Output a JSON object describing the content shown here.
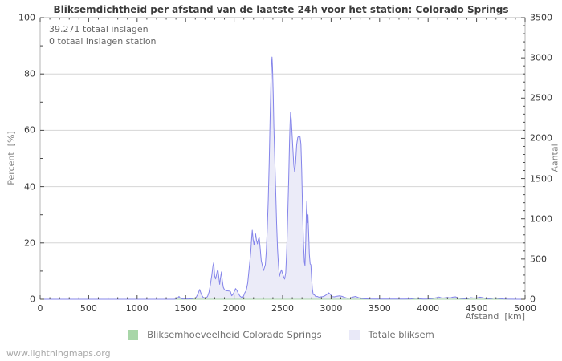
{
  "title": "Bliksemdichtheid per afstand van de laatste 24h voor het station: Colorado Springs",
  "annotations": {
    "total_strikes": "39.271 totaal inslagen",
    "station_strikes": "0 totaal inslagen station"
  },
  "watermark": "www.lightningmaps.org",
  "legend": [
    {
      "label": "Bliksemhoeveelheid Colorado Springs",
      "color": "#a8d6a8"
    },
    {
      "label": "Totale bliksem",
      "color": "#e9e9f8"
    }
  ],
  "colors": {
    "frame": "#b4b4b4",
    "grid": "#d6d6d6",
    "tick": "#4a4a4a",
    "total_line": "#8484ea",
    "total_fill": "#ebebf8",
    "station_line": "#a8d6a8"
  },
  "chart_data": {
    "type": "area",
    "title": "Bliksemdichtheid per afstand van de laatste 24h voor het station: Colorado Springs",
    "xlabel": "Afstand  [km]",
    "ylabel_left": "Percent  [%]",
    "ylabel_right": "Aantal",
    "x_axis": {
      "min": 0,
      "max": 5000,
      "major_step": 500,
      "minor_step": 100
    },
    "y_left": {
      "min": 0,
      "max": 100,
      "major_step": 20,
      "minor_step": 10
    },
    "y_right": {
      "min": 0,
      "max": 3500,
      "major_step": 500,
      "minor_step": 100
    },
    "grid": "horizontal-major-only",
    "legend_position": "bottom-center",
    "series": [
      {
        "name": "Bliksemhoeveelheid Colorado Springs",
        "axis": "left",
        "style": "line",
        "color": "#a8d6a8",
        "points": [
          [
            0,
            0
          ],
          [
            5000,
            0
          ]
        ]
      },
      {
        "name": "Totale bliksem",
        "axis": "right",
        "style": "area",
        "line_color": "#8484ea",
        "fill_color": "#ebebf8",
        "points": [
          [
            0,
            0
          ],
          [
            1200,
            0
          ],
          [
            1380,
            0
          ],
          [
            1405,
            4
          ],
          [
            1420,
            18
          ],
          [
            1432,
            35
          ],
          [
            1445,
            14
          ],
          [
            1470,
            4
          ],
          [
            1530,
            4
          ],
          [
            1570,
            7
          ],
          [
            1605,
            18
          ],
          [
            1625,
            60
          ],
          [
            1645,
            122
          ],
          [
            1662,
            60
          ],
          [
            1680,
            25
          ],
          [
            1700,
            14
          ],
          [
            1715,
            18
          ],
          [
            1728,
            40
          ],
          [
            1742,
            90
          ],
          [
            1755,
            180
          ],
          [
            1770,
            300
          ],
          [
            1782,
            420
          ],
          [
            1790,
            455
          ],
          [
            1800,
            290
          ],
          [
            1809,
            252
          ],
          [
            1818,
            300
          ],
          [
            1826,
            350
          ],
          [
            1833,
            368
          ],
          [
            1842,
            280
          ],
          [
            1851,
            185
          ],
          [
            1860,
            270
          ],
          [
            1869,
            340
          ],
          [
            1878,
            230
          ],
          [
            1888,
            150
          ],
          [
            1900,
            120
          ],
          [
            1915,
            108
          ],
          [
            1932,
            105
          ],
          [
            1948,
            103
          ],
          [
            1962,
            96
          ],
          [
            1974,
            44
          ],
          [
            1988,
            60
          ],
          [
            2002,
            95
          ],
          [
            2015,
            133
          ],
          [
            2030,
            108
          ],
          [
            2045,
            70
          ],
          [
            2060,
            40
          ],
          [
            2072,
            28
          ],
          [
            2086,
            20
          ],
          [
            2098,
            40
          ],
          [
            2110,
            80
          ],
          [
            2125,
            110
          ],
          [
            2140,
            200
          ],
          [
            2152,
            348
          ],
          [
            2163,
            480
          ],
          [
            2172,
            600
          ],
          [
            2180,
            740
          ],
          [
            2187,
            858
          ],
          [
            2196,
            740
          ],
          [
            2205,
            672
          ],
          [
            2214,
            750
          ],
          [
            2222,
            812
          ],
          [
            2231,
            730
          ],
          [
            2240,
            688
          ],
          [
            2250,
            745
          ],
          [
            2258,
            770
          ],
          [
            2268,
            640
          ],
          [
            2280,
            480
          ],
          [
            2292,
            415
          ],
          [
            2302,
            355
          ],
          [
            2312,
            392
          ],
          [
            2322,
            430
          ],
          [
            2332,
            600
          ],
          [
            2342,
            880
          ],
          [
            2352,
            1230
          ],
          [
            2362,
            1700
          ],
          [
            2372,
            2280
          ],
          [
            2380,
            2720
          ],
          [
            2386,
            2920
          ],
          [
            2391,
            3010
          ],
          [
            2396,
            2890
          ],
          [
            2403,
            2550
          ],
          [
            2410,
            2150
          ],
          [
            2418,
            1800
          ],
          [
            2428,
            1380
          ],
          [
            2438,
            950
          ],
          [
            2448,
            620
          ],
          [
            2458,
            420
          ],
          [
            2468,
            285
          ],
          [
            2477,
            330
          ],
          [
            2488,
            366
          ],
          [
            2499,
            320
          ],
          [
            2510,
            282
          ],
          [
            2521,
            250
          ],
          [
            2532,
            330
          ],
          [
            2543,
            620
          ],
          [
            2553,
            1050
          ],
          [
            2563,
            1500
          ],
          [
            2571,
            1950
          ],
          [
            2577,
            2180
          ],
          [
            2582,
            2320
          ],
          [
            2589,
            2240
          ],
          [
            2598,
            2050
          ],
          [
            2607,
            1850
          ],
          [
            2615,
            1670
          ],
          [
            2624,
            1580
          ],
          [
            2634,
            1700
          ],
          [
            2645,
            1920
          ],
          [
            2656,
            2010
          ],
          [
            2668,
            2030
          ],
          [
            2680,
            2020
          ],
          [
            2689,
            1930
          ],
          [
            2697,
            1600
          ],
          [
            2706,
            1100
          ],
          [
            2715,
            700
          ],
          [
            2724,
            460
          ],
          [
            2731,
            420
          ],
          [
            2738,
            700
          ],
          [
            2745,
            1080
          ],
          [
            2750,
            1225
          ],
          [
            2756,
            950
          ],
          [
            2762,
            1050
          ],
          [
            2769,
            800
          ],
          [
            2776,
            560
          ],
          [
            2784,
            440
          ],
          [
            2791,
            430
          ],
          [
            2798,
            280
          ],
          [
            2806,
            130
          ],
          [
            2815,
            60
          ],
          [
            2828,
            55
          ],
          [
            2842,
            32
          ],
          [
            2858,
            35
          ],
          [
            2875,
            26
          ],
          [
            2895,
            30
          ],
          [
            2915,
            32
          ],
          [
            2938,
            45
          ],
          [
            2958,
            62
          ],
          [
            2976,
            80
          ],
          [
            2994,
            58
          ],
          [
            3012,
            32
          ],
          [
            3035,
            30
          ],
          [
            3060,
            38
          ],
          [
            3088,
            42
          ],
          [
            3112,
            36
          ],
          [
            3138,
            24
          ],
          [
            3165,
            14
          ],
          [
            3195,
            15
          ],
          [
            3222,
            26
          ],
          [
            3252,
            35
          ],
          [
            3280,
            22
          ],
          [
            3310,
            10
          ],
          [
            3345,
            6
          ],
          [
            3390,
            4
          ],
          [
            3450,
            3
          ],
          [
            3520,
            2
          ],
          [
            3600,
            2
          ],
          [
            3680,
            2
          ],
          [
            3760,
            3
          ],
          [
            3820,
            4
          ],
          [
            3862,
            12
          ],
          [
            3886,
            15
          ],
          [
            3912,
            6
          ],
          [
            3950,
            3
          ],
          [
            3995,
            4
          ],
          [
            4025,
            6
          ],
          [
            4058,
            12
          ],
          [
            4088,
            20
          ],
          [
            4112,
            28
          ],
          [
            4138,
            16
          ],
          [
            4168,
            18
          ],
          [
            4198,
            22
          ],
          [
            4228,
            16
          ],
          [
            4255,
            26
          ],
          [
            4282,
            30
          ],
          [
            4308,
            18
          ],
          [
            4338,
            10
          ],
          [
            4372,
            6
          ],
          [
            4408,
            8
          ],
          [
            4442,
            20
          ],
          [
            4472,
            15
          ],
          [
            4505,
            18
          ],
          [
            4535,
            26
          ],
          [
            4562,
            20
          ],
          [
            4590,
            11
          ],
          [
            4618,
            6
          ],
          [
            4648,
            8
          ],
          [
            4678,
            16
          ],
          [
            4708,
            12
          ],
          [
            4738,
            8
          ],
          [
            4775,
            4
          ],
          [
            4815,
            2
          ],
          [
            4865,
            1
          ],
          [
            4920,
            0
          ],
          [
            5000,
            0
          ]
        ]
      }
    ]
  }
}
